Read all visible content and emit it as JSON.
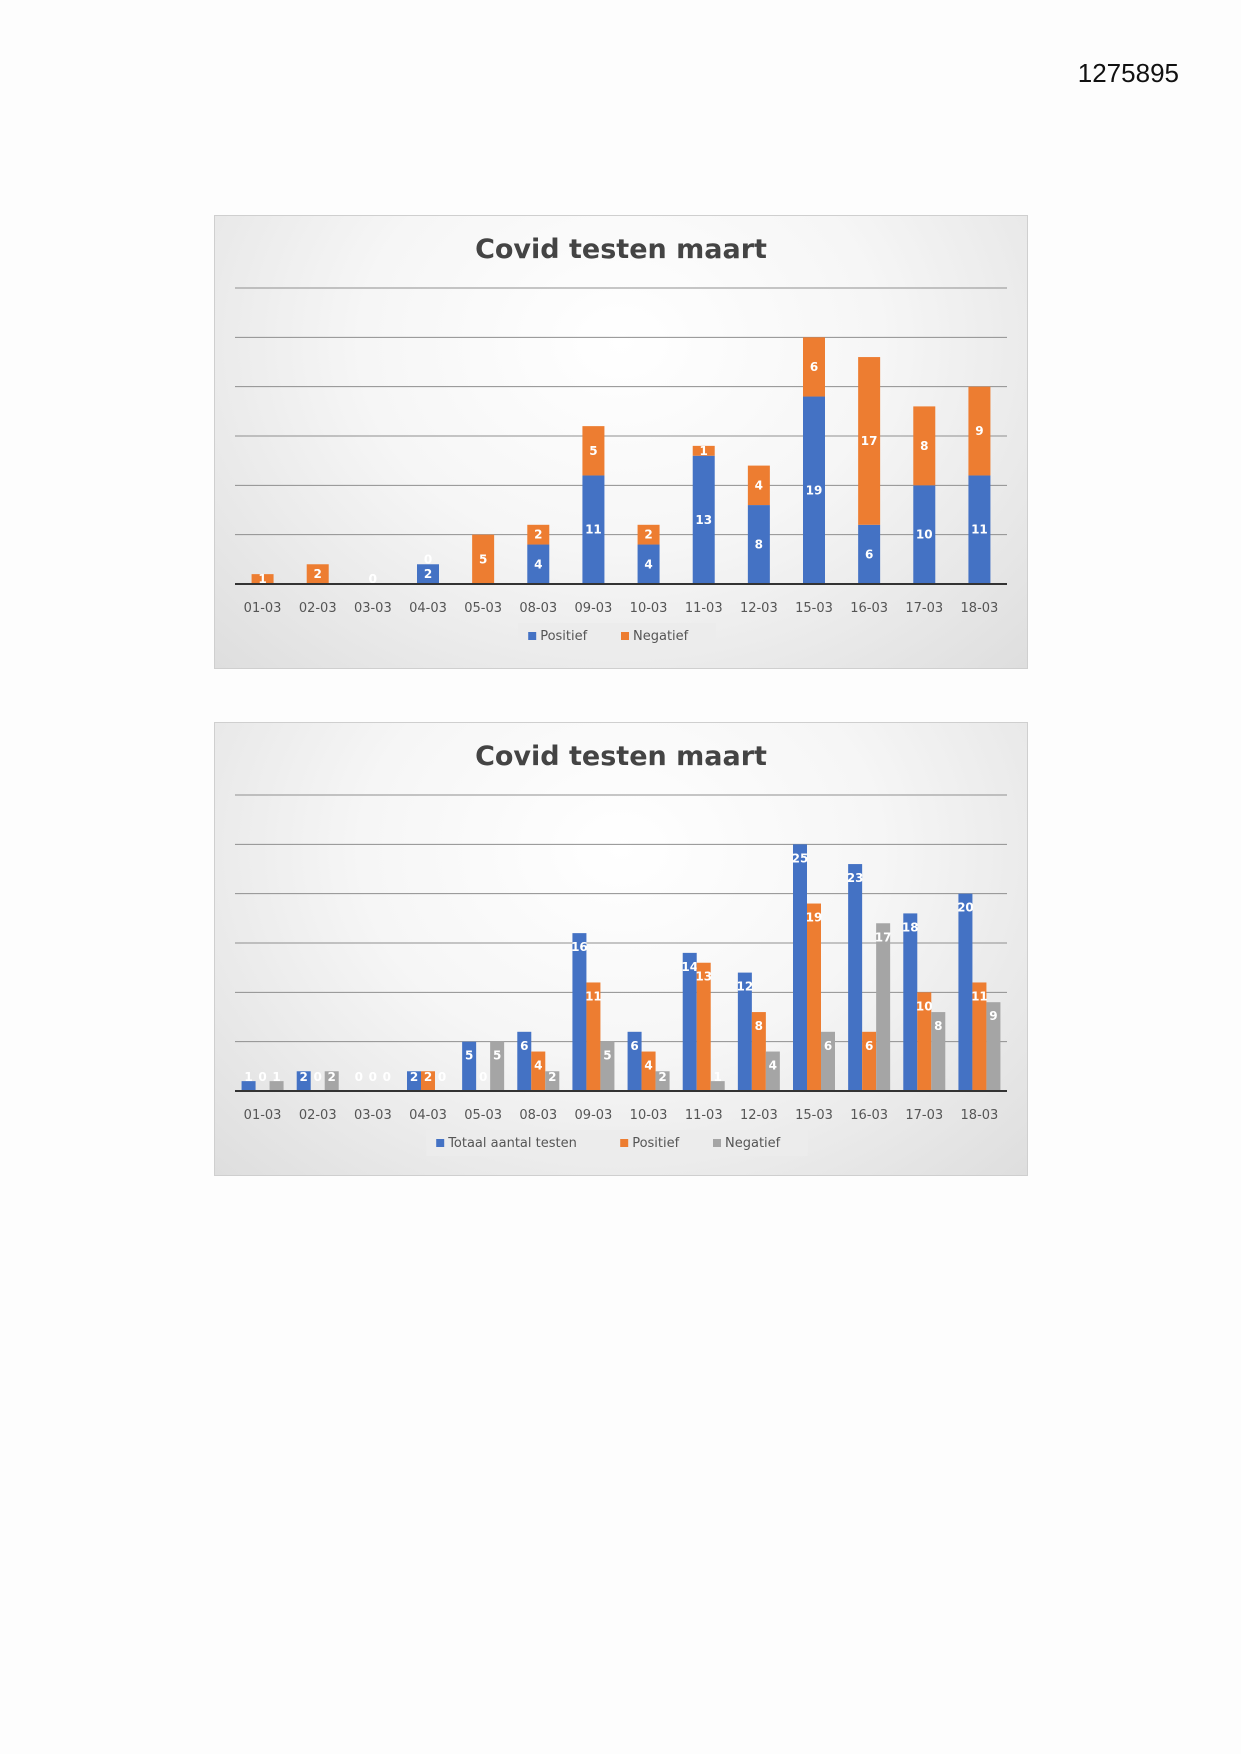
{
  "document": {
    "number": "1275895"
  },
  "colors": {
    "blue": "#4472c4",
    "orange": "#ed7d31",
    "gray": "#a5a5a5"
  },
  "chart_data": [
    {
      "type": "bar",
      "stacked": true,
      "title": "Covid testen maart",
      "categories": [
        "01-03",
        "02-03",
        "03-03",
        "04-03",
        "05-03",
        "08-03",
        "09-03",
        "10-03",
        "11-03",
        "12-03",
        "15-03",
        "16-03",
        "17-03",
        "18-03"
      ],
      "series": [
        {
          "name": "Positief",
          "color": "#4472c4",
          "values": [
            0,
            0,
            0,
            2,
            0,
            4,
            11,
            4,
            13,
            8,
            19,
            6,
            10,
            11
          ]
        },
        {
          "name": "Negatief",
          "color": "#ed7d31",
          "values": [
            1,
            2,
            0,
            0,
            5,
            2,
            5,
            2,
            1,
            4,
            6,
            17,
            8,
            9
          ]
        }
      ],
      "ylim": [
        0,
        30
      ],
      "grid": true,
      "legend": "bottom"
    },
    {
      "type": "bar",
      "stacked": false,
      "title": "Covid testen maart",
      "categories": [
        "01-03",
        "02-03",
        "03-03",
        "04-03",
        "05-03",
        "08-03",
        "09-03",
        "10-03",
        "11-03",
        "12-03",
        "15-03",
        "16-03",
        "17-03",
        "18-03"
      ],
      "series": [
        {
          "name": "Totaal aantal testen",
          "color": "#4472c4",
          "values": [
            1,
            2,
            0,
            2,
            5,
            6,
            16,
            6,
            14,
            12,
            25,
            23,
            18,
            20
          ]
        },
        {
          "name": "Positief",
          "color": "#ed7d31",
          "values": [
            0,
            0,
            0,
            2,
            0,
            4,
            11,
            4,
            13,
            8,
            19,
            6,
            10,
            11
          ]
        },
        {
          "name": "Negatief",
          "color": "#a5a5a5",
          "values": [
            1,
            2,
            0,
            0,
            5,
            2,
            5,
            2,
            1,
            4,
            6,
            17,
            8,
            9
          ]
        }
      ],
      "ylim": [
        0,
        30
      ],
      "grid": true,
      "legend": "bottom"
    }
  ]
}
